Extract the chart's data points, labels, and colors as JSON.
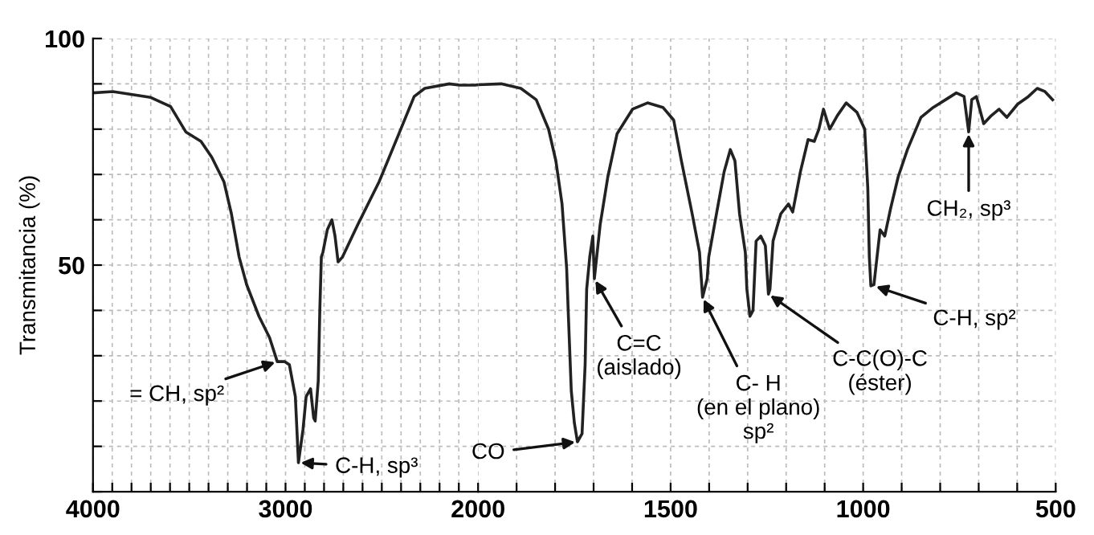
{
  "chart_data": [
    {
      "type": "line",
      "ylabel": "Transmitancia (%)",
      "x": [
        4000,
        3897,
        3700,
        3597,
        3518,
        3439,
        3383,
        3320,
        3281,
        3241,
        3202,
        3138,
        3083,
        3043,
        3004,
        2980,
        2949,
        2933,
        2909,
        2893,
        2870,
        2854,
        2846,
        2830,
        2822,
        2814,
        2806,
        2783,
        2759,
        2743,
        2727,
        2704,
        2625,
        2514,
        2411,
        2332,
        2277,
        2150,
        2095,
        2016,
        2000
      ],
      "series": [
        {
          "color": "#222222",
          "values": [
            88,
            88.3,
            87,
            85,
            79.4,
            77.3,
            73.8,
            68.4,
            61.3,
            51.8,
            45.7,
            38.7,
            34,
            28.7,
            28.7,
            28,
            21,
            6.4,
            13.8,
            21,
            22.7,
            16.3,
            15.6,
            24.5,
            40,
            51.8,
            52.8,
            57.8,
            60,
            56.4,
            50.7,
            51.8,
            58.9,
            68.4,
            79,
            87.2,
            89,
            90,
            89.7,
            89.7,
            89.8
          ]
        }
      ],
      "xlim": [
        4000,
        2000
      ],
      "xticks": [
        4000,
        {
          "value": 3900,
          "label": null
        },
        {
          "value": 3800,
          "label": null
        },
        {
          "value": 3700,
          "label": null
        },
        {
          "value": 3600,
          "label": null
        },
        {
          "value": 3500,
          "label": null
        },
        {
          "value": 3400,
          "label": null
        },
        {
          "value": 3300,
          "label": null
        },
        {
          "value": 3200,
          "label": null
        },
        {
          "value": 3100,
          "label": null
        },
        3000,
        {
          "value": 2900,
          "label": null
        },
        {
          "value": 2800,
          "label": null
        },
        {
          "value": 2700,
          "label": null
        },
        {
          "value": 2600,
          "label": null
        },
        {
          "value": 2500,
          "label": null
        },
        {
          "value": 2400,
          "label": null
        },
        {
          "value": 2300,
          "label": null
        },
        {
          "value": 2200,
          "label": null
        },
        {
          "value": 2100,
          "label": null
        }
      ],
      "ylim": [
        0,
        100
      ],
      "yticks": [
        {
          "value": 0,
          "label": null
        },
        {
          "value": 10,
          "label": null
        },
        {
          "value": 20,
          "label": null
        },
        {
          "value": 30,
          "label": null
        },
        {
          "value": 40,
          "label": null
        },
        50,
        {
          "value": 60,
          "label": null
        },
        {
          "value": 70,
          "label": null
        },
        {
          "value": 80,
          "label": null
        },
        {
          "value": 90,
          "label": null
        },
        100
      ],
      "grid": true,
      "annotations": [
        {
          "text": "= CH, sp²",
          "x": 3043,
          "y": 28.7
        },
        {
          "text": "C-H, sp³",
          "x": 2933,
          "y": 6.4
        }
      ]
    },
    {
      "type": "line",
      "x": [
        2000,
        1940,
        1889,
        1849,
        1817,
        1798,
        1782,
        1770,
        1766,
        1758,
        1750,
        1742,
        1730,
        1722,
        1718,
        1710,
        1702,
        1698,
        1683,
        1663,
        1639,
        1599,
        1560,
        1520,
        1492,
        1472,
        1444,
        1425,
        1417,
        1405,
        1401,
        1381,
        1361,
        1345,
        1333,
        1321,
        1306,
        1302,
        1294,
        1286,
        1278,
        1266,
        1254,
        1246,
        1242,
        1234,
        1214,
        1194,
        1183,
        1163,
        1143,
        1127,
        1115,
        1103,
        1087,
        1067,
        1044,
        1016,
        996,
        988,
        984,
        980,
        972,
        964,
        956,
        944,
        929,
        909,
        885,
        850,
        818,
        786,
        758,
        738,
        726,
        718,
        706,
        687,
        667,
        647,
        627,
        599,
        571,
        548,
        528,
        508
      ],
      "series": [
        {
          "color": "#222222",
          "values": [
            89.8,
            90,
            89,
            86.5,
            80,
            73,
            63.5,
            49.3,
            40,
            22.3,
            15.2,
            11,
            12.8,
            28,
            44.7,
            51.8,
            56.4,
            47,
            58.9,
            69.5,
            79,
            84.4,
            85.8,
            84.8,
            82,
            73,
            61.3,
            52.8,
            42.9,
            47,
            51.8,
            61.3,
            70.6,
            75.5,
            73,
            61.3,
            52.8,
            44.7,
            38.7,
            40,
            55.3,
            56.4,
            54.3,
            43.6,
            44.7,
            55.3,
            61.3,
            63.5,
            61.7,
            70.6,
            77.7,
            77.3,
            80,
            84.4,
            80,
            83,
            85.8,
            83.7,
            80,
            67,
            51.8,
            45.4,
            45.7,
            51.8,
            57.8,
            56.4,
            62.4,
            69.5,
            75.5,
            82.6,
            84.8,
            86.5,
            88,
            87.2,
            79.4,
            86.5,
            87.2,
            81.2,
            83,
            84.4,
            82.6,
            85.5,
            87.2,
            89,
            88.3,
            86.5
          ]
        }
      ],
      "xlim": [
        2000,
        500
      ],
      "xticks": [
        2000,
        {
          "value": 1900,
          "label": null
        },
        {
          "value": 1800,
          "label": null
        },
        {
          "value": 1700,
          "label": null
        },
        {
          "value": 1600,
          "label": null
        },
        1500,
        {
          "value": 1400,
          "label": null
        },
        {
          "value": 1300,
          "label": null
        },
        {
          "value": 1200,
          "label": null
        },
        {
          "value": 1100,
          "label": null
        },
        1000,
        {
          "value": 900,
          "label": null
        },
        {
          "value": 800,
          "label": null
        },
        {
          "value": 700,
          "label": null
        },
        {
          "value": 600,
          "label": null
        },
        500
      ],
      "ylim": [
        0,
        100
      ],
      "yticks": [
        {
          "value": 0,
          "label": null
        },
        {
          "value": 10,
          "label": null
        },
        {
          "value": 20,
          "label": null
        },
        {
          "value": 30,
          "label": null
        },
        {
          "value": 40,
          "label": null
        },
        {
          "value": 50,
          "label": null
        },
        {
          "value": 60,
          "label": null
        },
        {
          "value": 70,
          "label": null
        },
        {
          "value": 80,
          "label": null
        },
        {
          "value": 90,
          "label": null
        },
        {
          "value": 100,
          "label": null
        }
      ],
      "tick_labels": "x",
      "grid": true,
      "annotations": [
        {
          "text": "CO",
          "x": 1742,
          "y": 11
        },
        {
          "text": "C=C\n(aislado)",
          "x": 1698,
          "y": 47
        },
        {
          "text": "C- H\n(en el plano)\nsp²",
          "x": 1417,
          "y": 42.9
        },
        {
          "text": "C-C(O)-C\n(éster)",
          "x": 1246,
          "y": 43.6
        },
        {
          "text": "C-H, sp²",
          "x": 972,
          "y": 45.4
        },
        {
          "text": "CH₂, sp³",
          "x": 726,
          "y": 79.4
        }
      ]
    }
  ]
}
